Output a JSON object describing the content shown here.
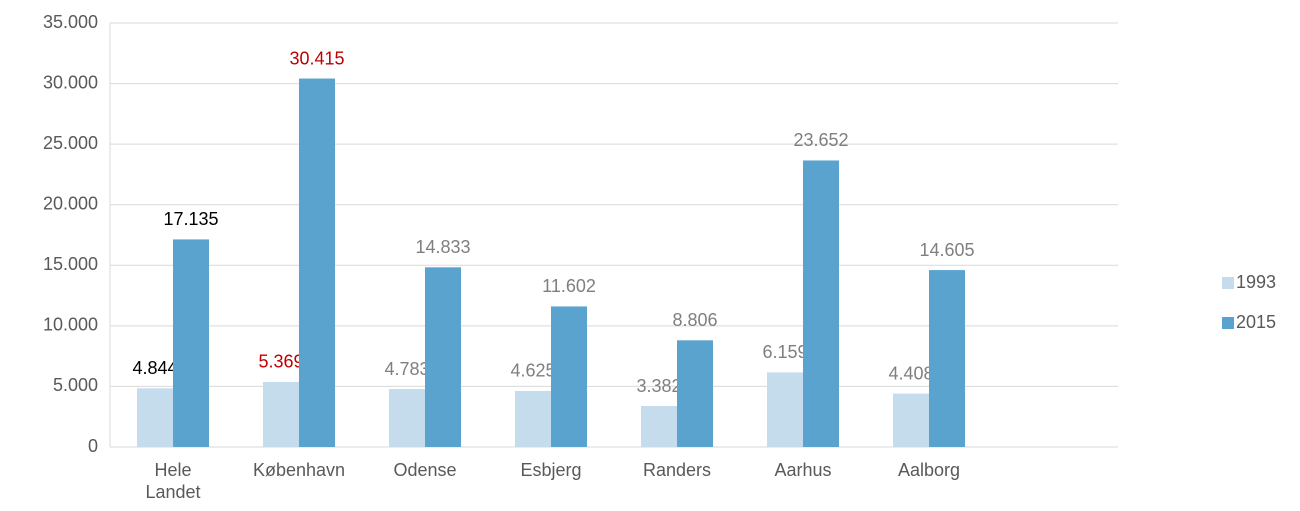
{
  "chart_data": {
    "type": "bar",
    "categories": [
      "Hele\nLandet",
      "København",
      "Odense",
      "Esbjerg",
      "Randers",
      "Aarhus",
      "Aalborg",
      null
    ],
    "series": [
      {
        "name": "1993",
        "color": "#c5dcec",
        "values": [
          4844,
          5369,
          4783,
          4625,
          3382,
          6159,
          4408,
          null
        ],
        "value_labels": [
          "4.844",
          "5.369",
          "4.783",
          "4.625",
          "3.382",
          "6.159",
          "4.408",
          null
        ],
        "label_colors": [
          "#000000",
          "#c00000",
          "#7f7f7f",
          "#7f7f7f",
          "#7f7f7f",
          "#7f7f7f",
          "#7f7f7f",
          null
        ]
      },
      {
        "name": "2015",
        "color": "#5ba3cf",
        "values": [
          17135,
          30415,
          14833,
          11602,
          8806,
          23652,
          14605,
          null
        ],
        "value_labels": [
          "17.135",
          "30.415",
          "14.833",
          "11.602",
          "8.806",
          "23.652",
          "14.605",
          null
        ],
        "label_colors": [
          "#000000",
          "#c00000",
          "#7f7f7f",
          "#7f7f7f",
          "#7f7f7f",
          "#7f7f7f",
          "#7f7f7f",
          null
        ]
      }
    ],
    "ylim": [
      0,
      35000
    ],
    "yticks": [
      0,
      {
        "value": 5000,
        "label": "5.000"
      },
      {
        "value": 10000,
        "label": "10.000"
      },
      {
        "value": 15000,
        "label": "15.000"
      },
      {
        "value": 20000,
        "label": "20.000"
      },
      {
        "value": 25000,
        "label": "25.000"
      },
      {
        "value": 30000,
        "label": "30.000"
      },
      {
        "value": 35000,
        "label": "35.000"
      }
    ],
    "grid": true,
    "legend": "right"
  }
}
